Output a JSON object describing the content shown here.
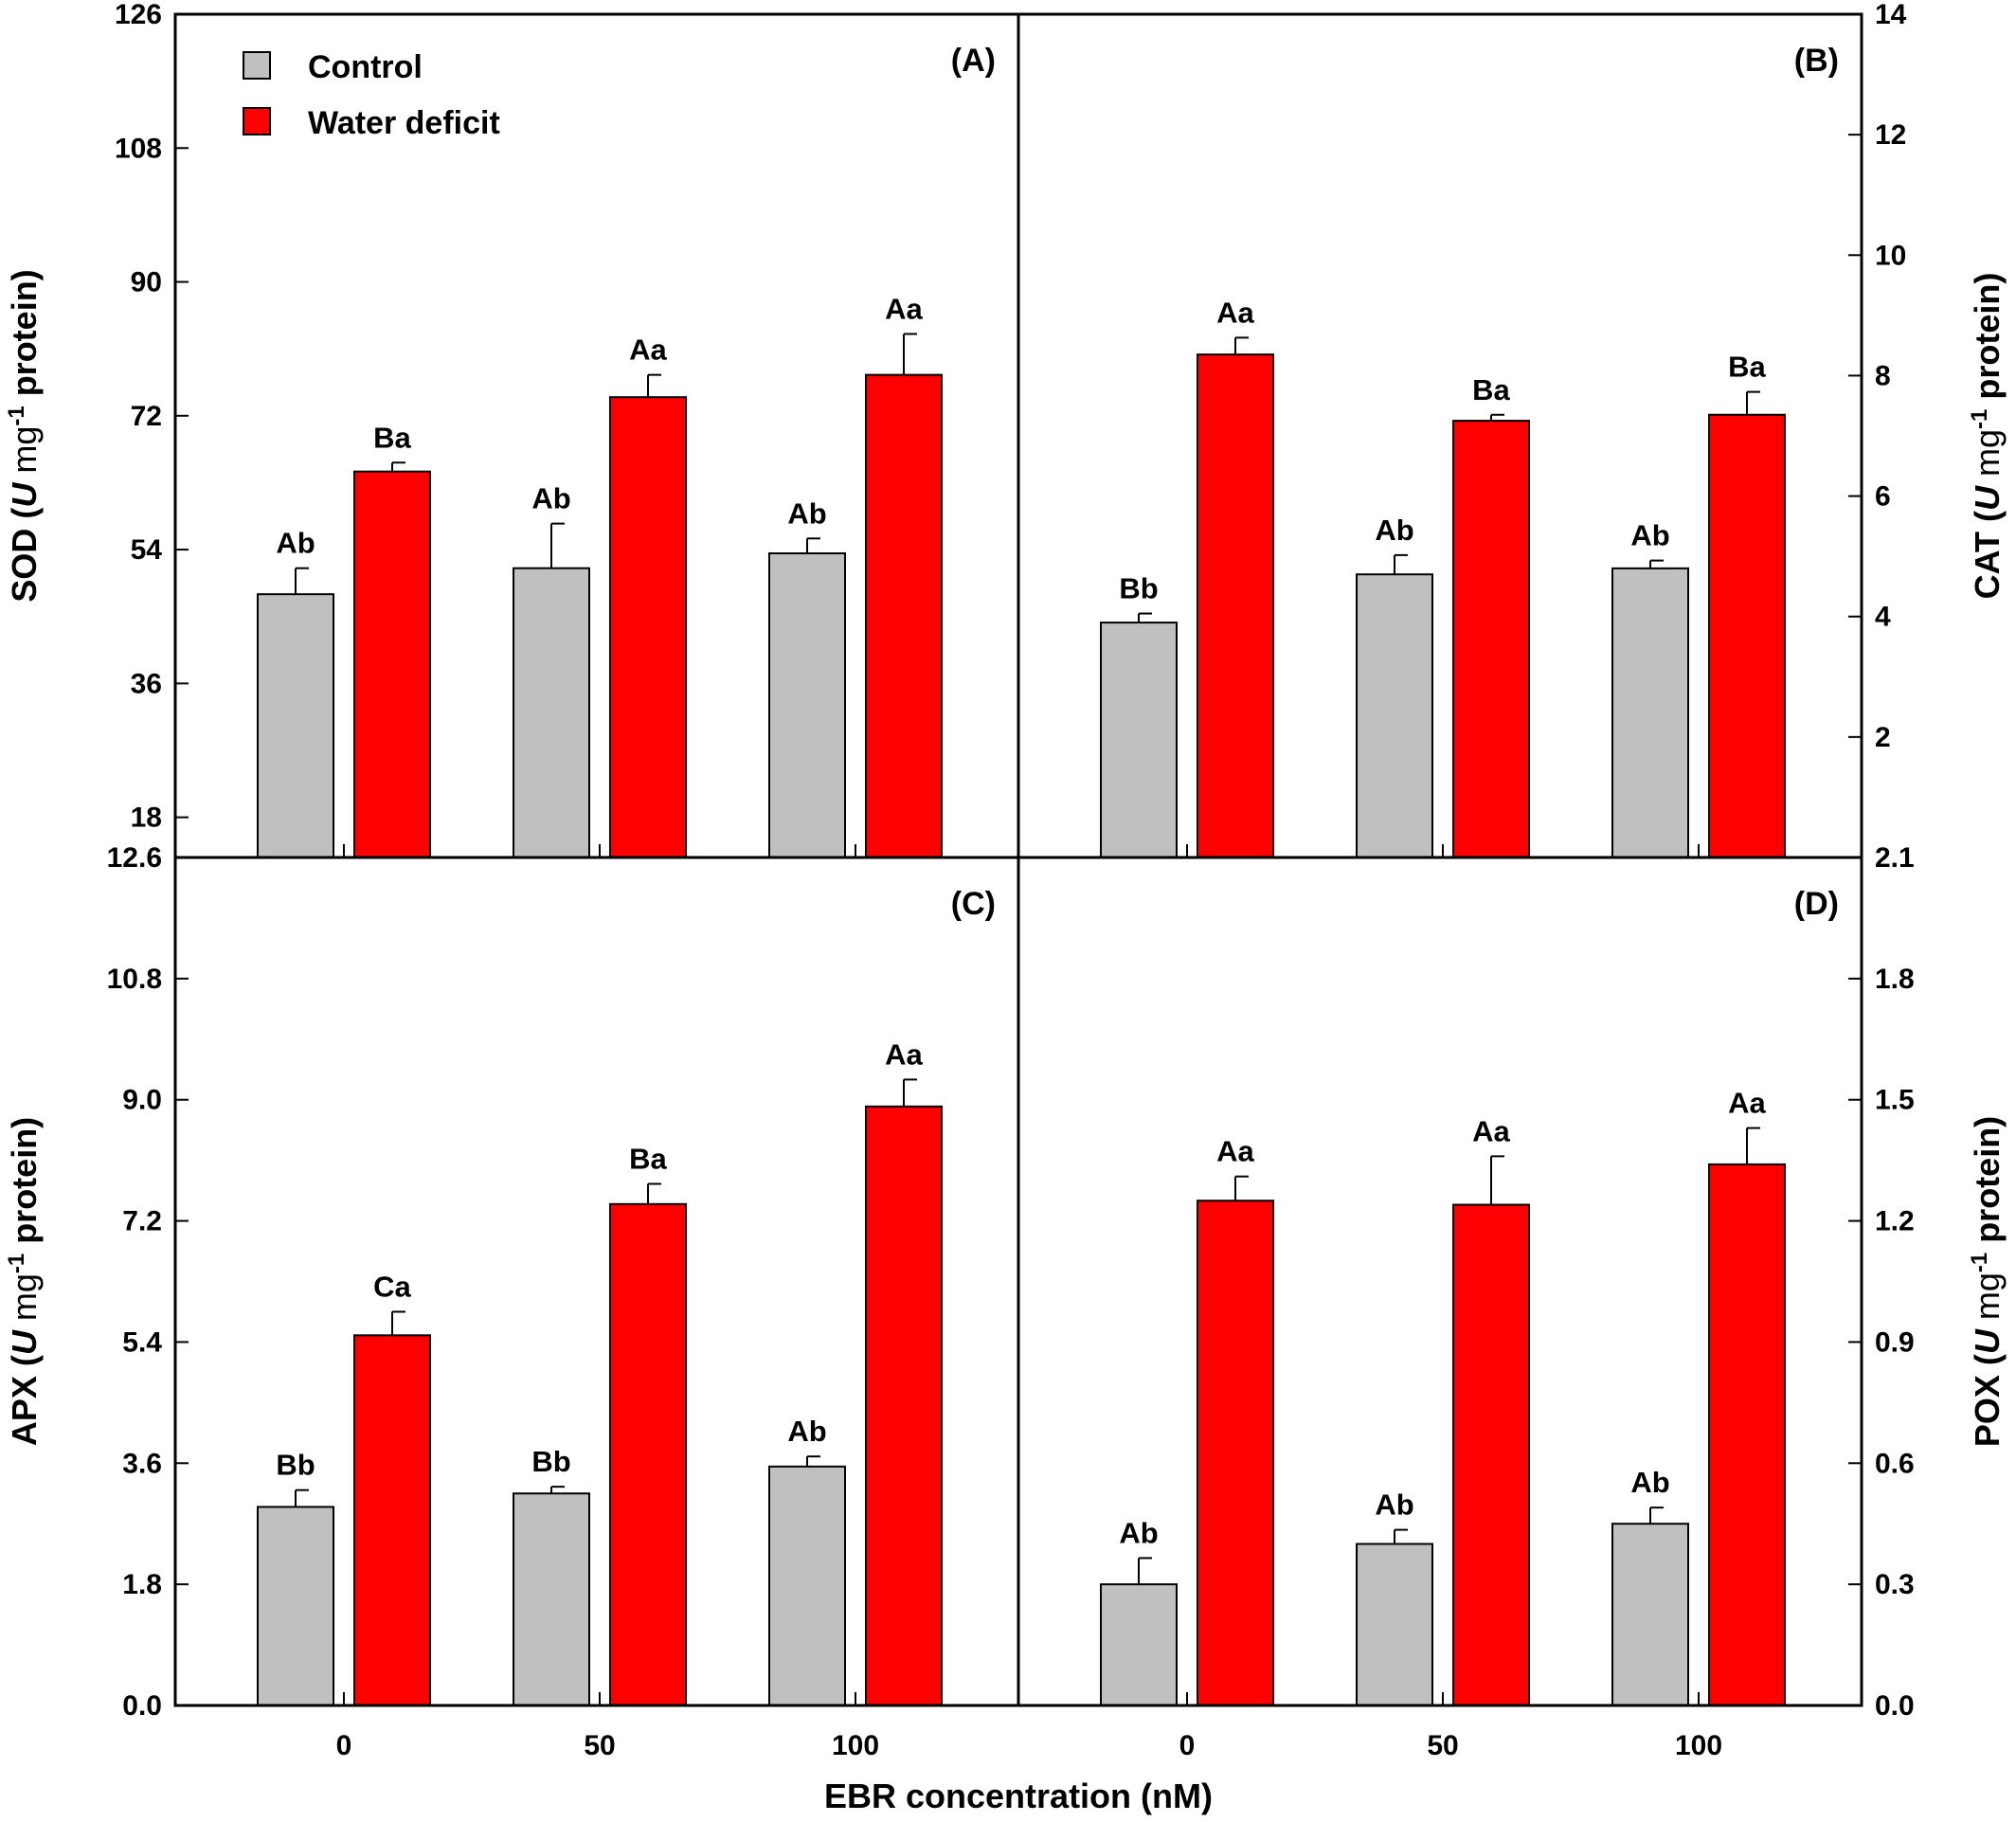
{
  "legend": {
    "items": [
      {
        "label": "Control",
        "color": "#c0c0c0"
      },
      {
        "label": "Water deficit",
        "color": "#ff0000"
      }
    ]
  },
  "x_axis": {
    "title": "EBR concentration (nM)"
  },
  "chart_data": [
    {
      "type": "bar",
      "panel": "(A)",
      "y_axis_side": "left",
      "ylabel_prefix": "SOD (",
      "ylabel_italic": "U",
      "ylabel_mid": " mg",
      "ylabel_sup": "-1",
      "ylabel_suffix": " protein)",
      "ylim": [
        12.6,
        126
      ],
      "yticks": [
        "12.6",
        "18",
        "36",
        "54",
        "72",
        "90",
        "108",
        "126"
      ],
      "ytick_values": [
        12.6,
        18,
        36,
        54,
        72,
        90,
        108,
        126
      ],
      "categories": [
        "0",
        "50",
        "100"
      ],
      "series": [
        {
          "name": "Control",
          "color": "#c0c0c0",
          "values": [
            48,
            51.5,
            53.5
          ],
          "errors": [
            3.5,
            6,
            2
          ],
          "labels": [
            "Ab",
            "Ab",
            "Ab"
          ]
        },
        {
          "name": "Water deficit",
          "color": "#ff0000",
          "values": [
            64.5,
            74.5,
            77.5
          ],
          "errors": [
            1.2,
            3,
            5.5
          ],
          "labels": [
            "Ba",
            "Aa",
            "Aa"
          ]
        }
      ]
    },
    {
      "type": "bar",
      "panel": "(B)",
      "y_axis_side": "right",
      "ylabel_prefix": "CAT (",
      "ylabel_italic": "U",
      "ylabel_mid": " mg",
      "ylabel_sup": "-1",
      "ylabel_suffix": " protein)",
      "ylim": [
        0,
        14
      ],
      "yticks": [
        "2",
        "4",
        "6",
        "8",
        "10",
        "12",
        "14"
      ],
      "ytick_values": [
        2,
        4,
        6,
        8,
        10,
        12,
        14
      ],
      "categories": [
        "0",
        "50",
        "100"
      ],
      "series": [
        {
          "name": "Control",
          "color": "#c0c0c0",
          "values": [
            3.9,
            4.7,
            4.8
          ],
          "errors": [
            0.15,
            0.32,
            0.13
          ],
          "labels": [
            "Bb",
            "Ab",
            "Ab"
          ]
        },
        {
          "name": "Water deficit",
          "color": "#ff0000",
          "values": [
            8.35,
            7.25,
            7.35
          ],
          "errors": [
            0.28,
            0.1,
            0.38
          ],
          "labels": [
            "Aa",
            "Ba",
            "Ba"
          ]
        }
      ]
    },
    {
      "type": "bar",
      "panel": "(C)",
      "y_axis_side": "left",
      "ylabel_prefix": "APX (",
      "ylabel_italic": "U",
      "ylabel_mid": " mg",
      "ylabel_sup": "-1",
      "ylabel_suffix": " protein)",
      "ylim": [
        0,
        12.6
      ],
      "yticks": [
        "0.0",
        "1.8",
        "3.6",
        "5.4",
        "7.2",
        "9.0",
        "10.8"
      ],
      "ytick_values": [
        0,
        1.8,
        3.6,
        5.4,
        7.2,
        9.0,
        10.8
      ],
      "categories": [
        "0",
        "50",
        "100"
      ],
      "series": [
        {
          "name": "Control",
          "color": "#c0c0c0",
          "values": [
            2.95,
            3.15,
            3.55
          ],
          "errors": [
            0.25,
            0.1,
            0.15
          ],
          "labels": [
            "Bb",
            "Bb",
            "Ab"
          ]
        },
        {
          "name": "Water deficit",
          "color": "#ff0000",
          "values": [
            5.5,
            7.45,
            8.9
          ],
          "errors": [
            0.35,
            0.3,
            0.4
          ],
          "labels": [
            "Ca",
            "Ba",
            "Aa"
          ]
        }
      ]
    },
    {
      "type": "bar",
      "panel": "(D)",
      "y_axis_side": "right",
      "ylabel_prefix": "POX (",
      "ylabel_italic": "U",
      "ylabel_mid": " mg",
      "ylabel_sup": "-1",
      "ylabel_suffix": " protein)",
      "ylim": [
        0,
        2.1
      ],
      "yticks": [
        "0.0",
        "0.3",
        "0.6",
        "0.9",
        "1.2",
        "1.5",
        "1.8",
        "2.1"
      ],
      "ytick_values": [
        0,
        0.3,
        0.6,
        0.9,
        1.2,
        1.5,
        1.8,
        2.1
      ],
      "categories": [
        "0",
        "50",
        "100"
      ],
      "series": [
        {
          "name": "Control",
          "color": "#c0c0c0",
          "values": [
            0.3,
            0.4,
            0.45
          ],
          "errors": [
            0.065,
            0.035,
            0.04
          ],
          "labels": [
            "Ab",
            "Ab",
            "Ab"
          ]
        },
        {
          "name": "Water deficit",
          "color": "#ff0000",
          "values": [
            1.25,
            1.24,
            1.34
          ],
          "errors": [
            0.06,
            0.12,
            0.09
          ],
          "labels": [
            "Aa",
            "Aa",
            "Aa"
          ]
        }
      ]
    }
  ]
}
